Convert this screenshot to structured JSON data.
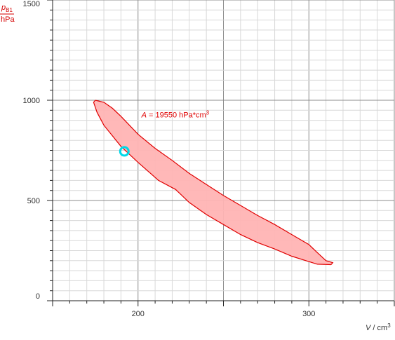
{
  "chart_data": {
    "type": "area",
    "title": "",
    "xlabel": {
      "symbol": "V",
      "unit": "cm",
      "unit_exp": "3"
    },
    "ylabel": {
      "symbol": "p",
      "subscript": "B1",
      "unit": "hPa"
    },
    "xlim": [
      150,
      350
    ],
    "ylim": [
      0,
      1500
    ],
    "x_ticks": [
      {
        "value": 200,
        "label": "200"
      },
      {
        "value": 300,
        "label": "300"
      }
    ],
    "y_ticks": [
      {
        "value": 0,
        "label": "0"
      },
      {
        "value": 500,
        "label": "500"
      },
      {
        "value": 1000,
        "label": "1000"
      },
      {
        "value": 1500,
        "label": "1500"
      }
    ],
    "grid": true,
    "annotation": {
      "symbol": "A",
      "text": "= 19550 hPa*cm",
      "exp": "3",
      "x": 202,
      "y": 915
    },
    "marker": {
      "x": 192,
      "y": 745,
      "color": "#00d8e8"
    },
    "fill_color": "#ffb4b4",
    "line_color": "#e00000",
    "series": [
      {
        "role": "upper-branch",
        "points": [
          [
            175,
            1000
          ],
          [
            180,
            990
          ],
          [
            185,
            960
          ],
          [
            190,
            920
          ],
          [
            200,
            830
          ],
          [
            210,
            760
          ],
          [
            220,
            700
          ],
          [
            230,
            635
          ],
          [
            240,
            580
          ],
          [
            250,
            525
          ],
          [
            260,
            475
          ],
          [
            270,
            425
          ],
          [
            280,
            380
          ],
          [
            290,
            330
          ],
          [
            300,
            280
          ],
          [
            305,
            240
          ],
          [
            310,
            200
          ],
          [
            314,
            190
          ],
          [
            313,
            180
          ]
        ]
      },
      {
        "role": "lower-branch",
        "points": [
          [
            313,
            180
          ],
          [
            305,
            182
          ],
          [
            300,
            195
          ],
          [
            290,
            222
          ],
          [
            280,
            258
          ],
          [
            270,
            290
          ],
          [
            260,
            330
          ],
          [
            250,
            380
          ],
          [
            240,
            430
          ],
          [
            230,
            490
          ],
          [
            222,
            555
          ],
          [
            212,
            600
          ],
          [
            200,
            690
          ],
          [
            190,
            770
          ],
          [
            180,
            875
          ],
          [
            176,
            940
          ],
          [
            174,
            990
          ],
          [
            175,
            1000
          ]
        ]
      }
    ]
  }
}
